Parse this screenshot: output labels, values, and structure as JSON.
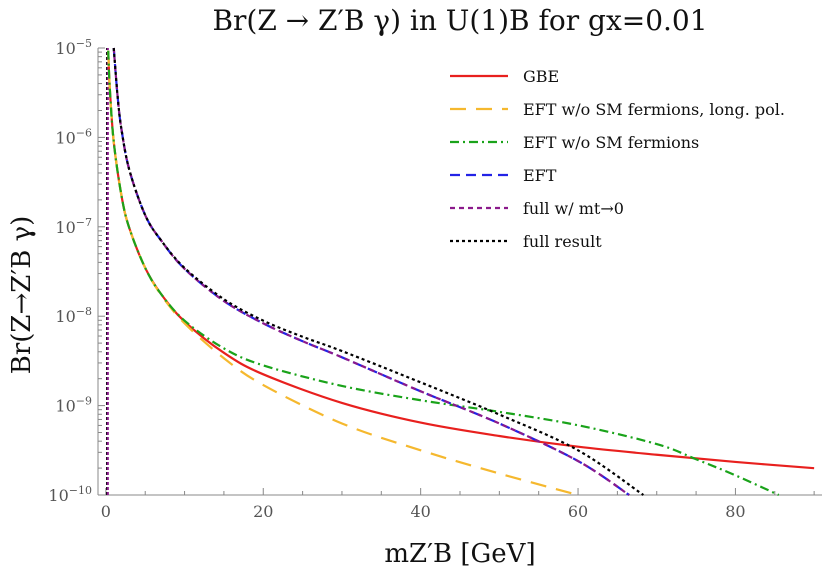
{
  "chart_data": {
    "type": "line",
    "title": "Br(Z → Z′B γ) in U(1)B for gx=0.01",
    "xlabel": "mZ′B [GeV]",
    "ylabel": "Br(Z→Z′B γ)",
    "xlim": [
      -1,
      91
    ],
    "ylim_log10": [
      -10,
      -5
    ],
    "y_scale": "log",
    "grid": false,
    "legend_position": "top-right",
    "x_ticks": [
      0,
      20,
      40,
      60,
      80
    ],
    "y_ticks": [
      {
        "base": "10",
        "exp": "−5",
        "value": -5
      },
      {
        "base": "10",
        "exp": "−6",
        "value": -6
      },
      {
        "base": "10",
        "exp": "−7",
        "value": -7
      },
      {
        "base": "10",
        "exp": "−8",
        "value": -8
      },
      {
        "base": "10",
        "exp": "−9",
        "value": -9
      },
      {
        "base": "10",
        "exp": "−10",
        "value": -10
      }
    ],
    "series": [
      {
        "name": "GBE",
        "color": "#e8201e",
        "dash": "solid",
        "x": [
          0.3,
          0.5,
          1,
          2,
          3,
          5,
          7,
          10,
          15,
          20,
          30,
          40,
          50,
          60,
          70,
          80,
          90
        ],
        "log10_y": [
          -5.03,
          -5.45,
          -6.05,
          -6.66,
          -7.02,
          -7.46,
          -7.75,
          -8.06,
          -8.41,
          -8.65,
          -8.97,
          -9.19,
          -9.34,
          -9.46,
          -9.55,
          -9.63,
          -9.7
        ]
      },
      {
        "name": "EFT w/o SM fermions, long. pol.",
        "color": "#f5b82e",
        "dash": "long-dash",
        "x": [
          0.3,
          0.5,
          1,
          2,
          3,
          5,
          7,
          10,
          15,
          20,
          30,
          40,
          50,
          60
        ],
        "log10_y": [
          -5.03,
          -5.45,
          -6.05,
          -6.66,
          -7.02,
          -7.46,
          -7.76,
          -8.08,
          -8.47,
          -8.77,
          -9.2,
          -9.5,
          -9.76,
          -10.0
        ]
      },
      {
        "name": "EFT w/o SM fermions",
        "color": "#1aa31a",
        "dash": "dash-dot",
        "x": [
          0.3,
          0.5,
          1,
          2,
          3,
          5,
          7,
          10,
          15,
          20,
          30,
          40,
          50,
          60,
          70,
          75,
          80,
          85.5
        ],
        "log10_y": [
          -5.03,
          -5.45,
          -6.05,
          -6.66,
          -7.02,
          -7.46,
          -7.75,
          -8.05,
          -8.36,
          -8.55,
          -8.78,
          -8.94,
          -9.07,
          -9.22,
          -9.43,
          -9.6,
          -9.78,
          -10.0
        ]
      },
      {
        "name": "EFT",
        "color": "#2323e6",
        "dash": "dash",
        "x": [
          1.0,
          1.5,
          2,
          3,
          5,
          7,
          10,
          15,
          20,
          25,
          30,
          40,
          50,
          60,
          66.5
        ],
        "log10_y": [
          -5.0,
          -5.55,
          -5.92,
          -6.37,
          -6.87,
          -7.15,
          -7.47,
          -7.83,
          -8.08,
          -8.28,
          -8.46,
          -8.84,
          -9.2,
          -9.62,
          -10.0
        ]
      },
      {
        "name": "full w/ mt→0",
        "color": "#8b1a8b",
        "dash": "short-dash",
        "x": [
          1.0,
          1.5,
          2,
          3,
          5,
          7,
          10,
          15,
          20,
          25,
          30,
          40,
          50,
          60,
          66.5
        ],
        "log10_y": [
          -5.0,
          -5.55,
          -5.92,
          -6.37,
          -6.87,
          -7.15,
          -7.47,
          -7.83,
          -8.08,
          -8.28,
          -8.46,
          -8.84,
          -9.2,
          -9.62,
          -10.0
        ]
      },
      {
        "name": "full result",
        "color": "#000000",
        "dash": "dot",
        "x": [
          1.0,
          1.5,
          2,
          3,
          5,
          7,
          10,
          15,
          20,
          25,
          30,
          40,
          50,
          60,
          68.3
        ],
        "log10_y": [
          -5.0,
          -5.55,
          -5.92,
          -6.37,
          -6.87,
          -7.15,
          -7.46,
          -7.81,
          -8.05,
          -8.23,
          -8.39,
          -8.74,
          -9.1,
          -9.5,
          -10.0
        ]
      }
    ],
    "spikes": [
      {
        "x": 0.15,
        "log10_top": -5.0,
        "color": "#000000"
      },
      {
        "x": 0.25,
        "log10_top": -5.0,
        "color": "#8b1a8b"
      }
    ]
  }
}
